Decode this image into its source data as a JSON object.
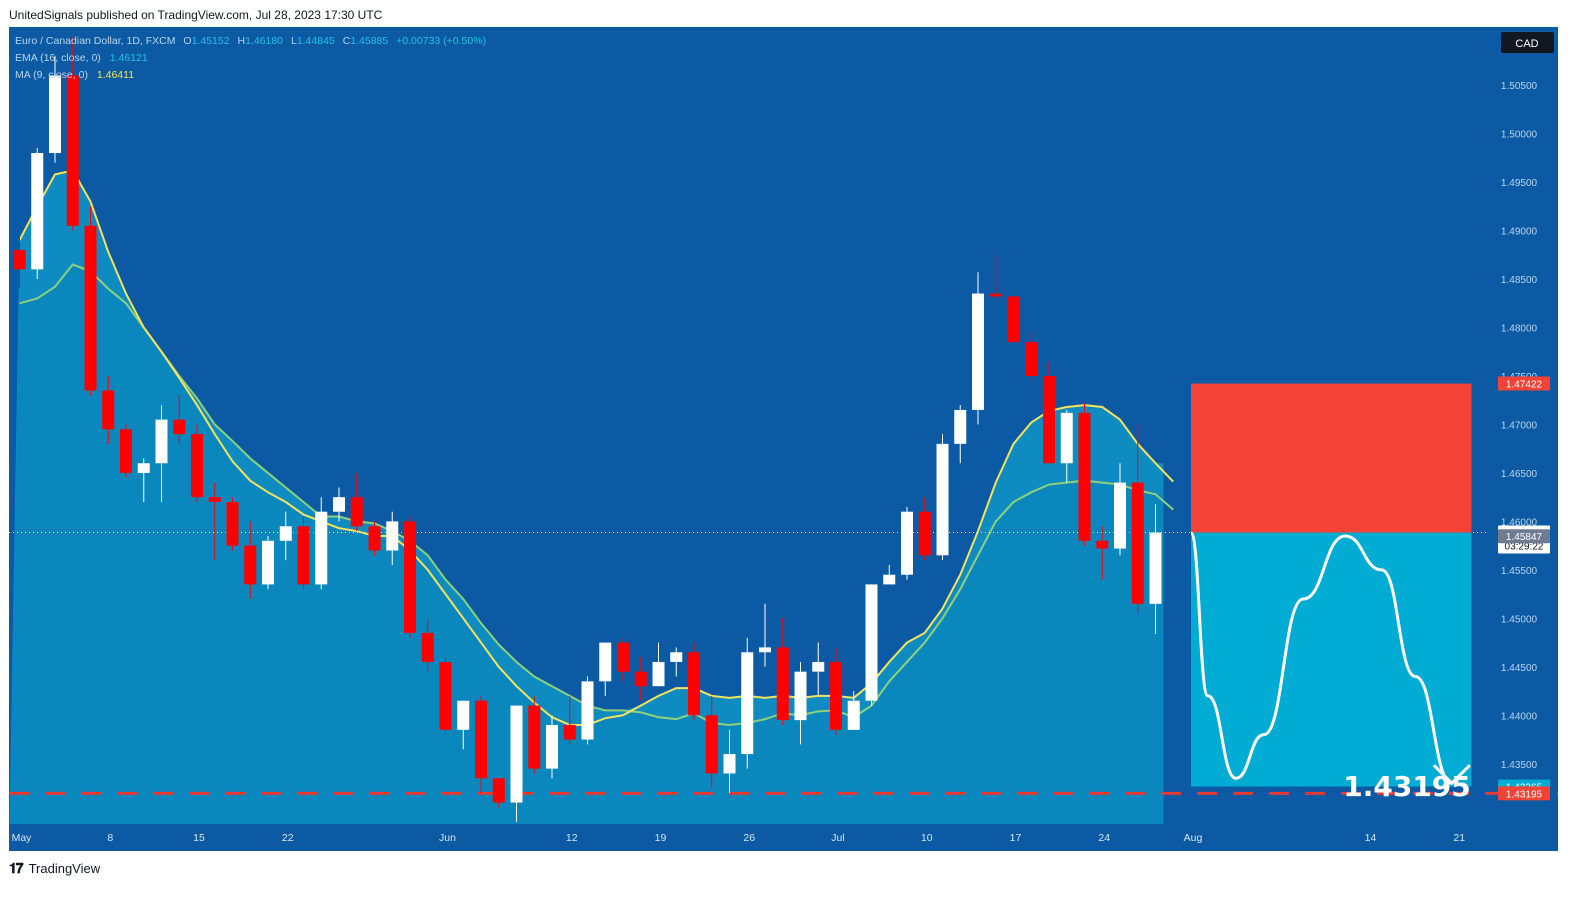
{
  "header": {
    "published": "UnitedSignals published on TradingView.com, Jul 28, 2023 17:30 UTC"
  },
  "footer": {
    "brand": "TradingView",
    "brand_icon": "tradingview-logo-icon"
  },
  "colors": {
    "background": "#0b5aa3",
    "ma_band_fill": "#0f8fc4",
    "ema_line": "#8fd17a",
    "ma_line": "#f5e35b",
    "bull_candle": "#ffffff",
    "bear_candle": "#ff0000",
    "stop_zone": "#f44336",
    "target_zone": "#00acd4",
    "target_line": "#e53935",
    "curve": "#ffffff",
    "price_line": "#ffffff"
  },
  "chart_data": {
    "type": "candlestick",
    "symbol_line": {
      "name": "Euro / Canadian Dollar, 1D, FXCM",
      "o_label": "O",
      "o": "1.45152",
      "h_label": "H",
      "h": "1.46180",
      "l_label": "L",
      "l": "1.44845",
      "c_label": "C",
      "c": "1.45885",
      "change": "+0.00733 (+0.50%)"
    },
    "indicators": [
      {
        "label": "EMA (16, close, 0)",
        "value": "1.46121",
        "color": "#1ec3e6"
      },
      {
        "label": "MA (9, close, 0)",
        "value": "1.46411",
        "color": "#f5e35b"
      }
    ],
    "currency": "CAD",
    "y_range": [
      1.426,
      1.511
    ],
    "y_ticks": [
      "1.50500",
      "1.50000",
      "1.49500",
      "1.49000",
      "1.48500",
      "1.48000",
      "1.47500",
      "1.47000",
      "1.46500",
      "1.46000",
      "1.45500",
      "1.45000",
      "1.44500",
      "1.44000",
      "1.43500"
    ],
    "x_ticks": [
      {
        "label": "May",
        "i": 0
      },
      {
        "label": "8",
        "i": 5
      },
      {
        "label": "15",
        "i": 10
      },
      {
        "label": "22",
        "i": 15
      },
      {
        "label": "Jun",
        "i": 24
      },
      {
        "label": "12",
        "i": 31
      },
      {
        "label": "19",
        "i": 36
      },
      {
        "label": "26",
        "i": 41
      },
      {
        "label": "Jul",
        "i": 46
      },
      {
        "label": "10",
        "i": 51
      },
      {
        "label": "17",
        "i": 56
      },
      {
        "label": "24",
        "i": 61
      },
      {
        "label": "Aug",
        "i": 66
      },
      {
        "label": "14",
        "i": 76
      },
      {
        "label": "21",
        "i": 81
      }
    ],
    "candles": [
      [
        1.488,
        1.495,
        1.484,
        1.486
      ],
      [
        1.486,
        1.4985,
        1.485,
        1.498
      ],
      [
        1.498,
        1.508,
        1.497,
        1.506
      ],
      [
        1.506,
        1.51,
        1.49,
        1.4905
      ],
      [
        1.4905,
        1.4925,
        1.473,
        1.4735
      ],
      [
        1.4735,
        1.475,
        1.468,
        1.4695
      ],
      [
        1.4695,
        1.47,
        1.4645,
        1.465
      ],
      [
        1.465,
        1.4665,
        1.462,
        1.466
      ],
      [
        1.466,
        1.472,
        1.462,
        1.4705
      ],
      [
        1.4705,
        1.473,
        1.468,
        1.469
      ],
      [
        1.469,
        1.47,
        1.462,
        1.4625
      ],
      [
        1.4625,
        1.464,
        1.456,
        1.462
      ],
      [
        1.462,
        1.4625,
        1.457,
        1.4575
      ],
      [
        1.4575,
        1.46,
        1.452,
        1.4535
      ],
      [
        1.4535,
        1.4585,
        1.453,
        1.458
      ],
      [
        1.458,
        1.461,
        1.456,
        1.4595
      ],
      [
        1.4595,
        1.4605,
        1.453,
        1.4535
      ],
      [
        1.4535,
        1.4625,
        1.453,
        1.461
      ],
      [
        1.461,
        1.4635,
        1.46,
        1.4625
      ],
      [
        1.4625,
        1.465,
        1.459,
        1.4595
      ],
      [
        1.4595,
        1.46,
        1.4565,
        1.457
      ],
      [
        1.457,
        1.461,
        1.4555,
        1.46
      ],
      [
        1.46,
        1.4605,
        1.448,
        1.4485
      ],
      [
        1.4485,
        1.45,
        1.4445,
        1.4455
      ],
      [
        1.4455,
        1.446,
        1.438,
        1.4385
      ],
      [
        1.4385,
        1.4415,
        1.4365,
        1.4415
      ],
      [
        1.4415,
        1.442,
        1.432,
        1.4335
      ],
      [
        1.4335,
        1.4335,
        1.4305,
        1.431
      ],
      [
        1.431,
        1.441,
        1.429,
        1.441
      ],
      [
        1.441,
        1.442,
        1.434,
        1.4345
      ],
      [
        1.4345,
        1.44,
        1.4335,
        1.439
      ],
      [
        1.439,
        1.442,
        1.437,
        1.4375
      ],
      [
        1.4375,
        1.444,
        1.437,
        1.4435
      ],
      [
        1.4435,
        1.4475,
        1.442,
        1.4475
      ],
      [
        1.4475,
        1.448,
        1.4435,
        1.4445
      ],
      [
        1.4445,
        1.446,
        1.4415,
        1.443
      ],
      [
        1.443,
        1.4475,
        1.443,
        1.4455
      ],
      [
        1.4455,
        1.447,
        1.444,
        1.4465
      ],
      [
        1.4465,
        1.4475,
        1.4395,
        1.44
      ],
      [
        1.44,
        1.442,
        1.4325,
        1.434
      ],
      [
        1.434,
        1.4385,
        1.432,
        1.436
      ],
      [
        1.436,
        1.448,
        1.4345,
        1.4465
      ],
      [
        1.4465,
        1.4515,
        1.445,
        1.447
      ],
      [
        1.447,
        1.45,
        1.439,
        1.4395
      ],
      [
        1.4395,
        1.4455,
        1.437,
        1.4445
      ],
      [
        1.4445,
        1.4475,
        1.442,
        1.4455
      ],
      [
        1.4455,
        1.447,
        1.438,
        1.4385
      ],
      [
        1.4385,
        1.4425,
        1.4385,
        1.4415
      ],
      [
        1.4415,
        1.4535,
        1.441,
        1.4535
      ],
      [
        1.4535,
        1.4555,
        1.4535,
        1.4545
      ],
      [
        1.4545,
        1.4615,
        1.454,
        1.461
      ],
      [
        1.461,
        1.4625,
        1.456,
        1.4565
      ],
      [
        1.4565,
        1.469,
        1.456,
        1.468
      ],
      [
        1.468,
        1.472,
        1.466,
        1.4715
      ],
      [
        1.4715,
        1.4857,
        1.47,
        1.4835
      ],
      [
        1.4835,
        1.4875,
        1.483,
        1.4832
      ],
      [
        1.4832,
        1.488,
        1.4785,
        1.4785
      ],
      [
        1.4785,
        1.4795,
        1.4745,
        1.475
      ],
      [
        1.475,
        1.4765,
        1.466,
        1.466
      ],
      [
        1.466,
        1.4715,
        1.464,
        1.4712
      ],
      [
        1.4712,
        1.4722,
        1.4575,
        1.458
      ],
      [
        1.458,
        1.4595,
        1.454,
        1.4572
      ],
      [
        1.4572,
        1.466,
        1.4565,
        1.464
      ],
      [
        1.464,
        1.47,
        1.4505,
        1.4515
      ],
      [
        1.4515,
        1.4618,
        1.4484,
        1.45885
      ]
    ],
    "ma9": [
      1.489,
      1.4925,
      1.4958,
      1.4962,
      1.493,
      1.4878,
      1.4835,
      1.48,
      1.4775,
      1.4748,
      1.472,
      1.469,
      1.4662,
      1.4642,
      1.463,
      1.462,
      1.4607,
      1.46,
      1.4593,
      1.459,
      1.4585,
      1.4585,
      1.457,
      1.455,
      1.4525,
      1.45,
      1.4475,
      1.445,
      1.443,
      1.4413,
      1.4398,
      1.439,
      1.439,
      1.4397,
      1.44,
      1.441,
      1.442,
      1.4428,
      1.4428,
      1.442,
      1.4418,
      1.442,
      1.4418,
      1.442,
      1.4418,
      1.442,
      1.442,
      1.4418,
      1.4433,
      1.4455,
      1.4475,
      1.4485,
      1.451,
      1.4545,
      1.459,
      1.464,
      1.468,
      1.4702,
      1.4714,
      1.4718,
      1.472,
      1.4718,
      1.4705,
      1.468,
      1.466,
      1.4641
    ],
    "ema16": [
      1.4825,
      1.483,
      1.4842,
      1.4865,
      1.4858,
      1.484,
      1.4825,
      1.48,
      1.4775,
      1.475,
      1.4727,
      1.47,
      1.4683,
      1.4665,
      1.465,
      1.4635,
      1.462,
      1.4605,
      1.4605,
      1.46,
      1.4598,
      1.459,
      1.458,
      1.4565,
      1.454,
      1.452,
      1.4495,
      1.4473,
      1.4455,
      1.444,
      1.443,
      1.442,
      1.441,
      1.4405,
      1.4405,
      1.4403,
      1.4398,
      1.4396,
      1.4402,
      1.4392,
      1.439,
      1.4392,
      1.4396,
      1.4402,
      1.44,
      1.4404,
      1.4405,
      1.4398,
      1.441,
      1.4435,
      1.4455,
      1.4475,
      1.45,
      1.453,
      1.4565,
      1.46,
      1.462,
      1.463,
      1.4638,
      1.464,
      1.4642,
      1.464,
      1.4638,
      1.4632,
      1.4628,
      1.46121
    ],
    "price_line": 1.45885,
    "target_line": 1.43195,
    "price_labels": [
      {
        "text": "1.47422",
        "value": 1.47422,
        "bg": "#f44336"
      },
      {
        "text": "1.45885",
        "sub": "03:29:22",
        "value": 1.45885,
        "bg": "#ffffff"
      },
      {
        "text": "1.45847",
        "value": 1.45847,
        "bg": "#6e7c91"
      },
      {
        "text": "1.43265",
        "value": 1.43265,
        "bg": "#00acd4"
      },
      {
        "text": "1.43195",
        "value": 1.43195,
        "bg": "#f44336"
      }
    ],
    "position": {
      "entry": 1.45885,
      "stop": 1.47422,
      "target": 1.43265,
      "start_i": 66,
      "end_i": 81.8
    },
    "target_text": "1.43195"
  }
}
